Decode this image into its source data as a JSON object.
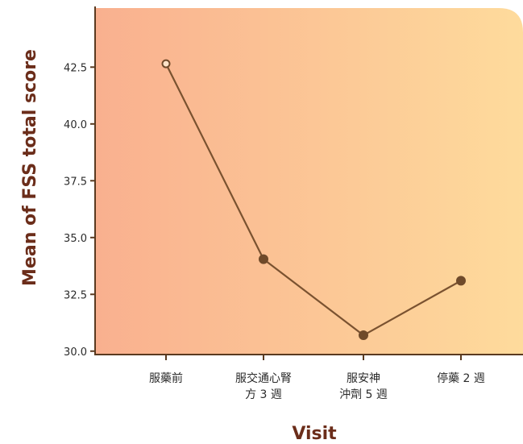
{
  "chart_data": {
    "type": "line",
    "title": "",
    "xlabel": "Visit",
    "ylabel": "Mean of FSS total score",
    "categories": [
      [
        "服藥前"
      ],
      [
        "服交通心腎",
        "方 3 週"
      ],
      [
        "服安神",
        "沖劑 5 週"
      ],
      [
        "停藥 2 週"
      ]
    ],
    "series": [
      {
        "values": [
          42.65,
          34.05,
          30.7,
          33.1
        ],
        "marker_fill": [
          "hollow",
          "filled",
          "filled",
          "filled"
        ]
      }
    ],
    "yticks": [
      "30.0",
      "32.5",
      "35.0",
      "37.5",
      "40.0",
      "42.5"
    ],
    "ylim": [
      29.85,
      45.1
    ],
    "grid": false,
    "legend": "none",
    "colors": {
      "line": "#7a5230",
      "marker": "#6f4a2a",
      "bg_left": "#f9b08f",
      "bg_right": "#fedb9c",
      "axis": "#5a3a20",
      "axis_title": "#6b2d1a"
    }
  }
}
